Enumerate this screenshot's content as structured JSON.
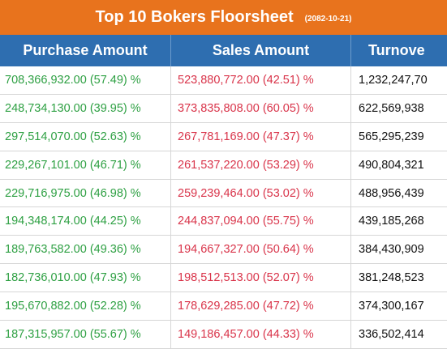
{
  "title": {
    "main": "Top 10 Bokers Floorsheet",
    "date": "(2082-10-21)"
  },
  "columns": {
    "purchase": "Purchase Amount",
    "sales": "Sales Amount",
    "turnover": "Turnove"
  },
  "rows": [
    {
      "purchase": "708,366,932.00 (57.49) %",
      "sales": "523,880,772.00 (42.51) %",
      "turnover": "1,232,247,70"
    },
    {
      "purchase": "248,734,130.00 (39.95) %",
      "sales": "373,835,808.00 (60.05) %",
      "turnover": "622,569,938"
    },
    {
      "purchase": "297,514,070.00 (52.63) %",
      "sales": "267,781,169.00 (47.37) %",
      "turnover": "565,295,239"
    },
    {
      "purchase": "229,267,101.00 (46.71) %",
      "sales": "261,537,220.00 (53.29) %",
      "turnover": "490,804,321"
    },
    {
      "purchase": "229,716,975.00 (46.98) %",
      "sales": "259,239,464.00 (53.02) %",
      "turnover": "488,956,439"
    },
    {
      "purchase": "194,348,174.00 (44.25) %",
      "sales": "244,837,094.00 (55.75) %",
      "turnover": "439,185,268"
    },
    {
      "purchase": "189,763,582.00 (49.36) %",
      "sales": "194,667,327.00 (50.64) %",
      "turnover": "384,430,909"
    },
    {
      "purchase": "182,736,010.00 (47.93) %",
      "sales": "198,512,513.00 (52.07) %",
      "turnover": "381,248,523"
    },
    {
      "purchase": "195,670,882.00 (52.28) %",
      "sales": "178,629,285.00 (47.72) %",
      "turnover": "374,300,167"
    },
    {
      "purchase": "187,315,957.00 (55.67) %",
      "sales": "149,186,457.00 (44.33) %",
      "turnover": "336,502,414"
    }
  ],
  "colors": {
    "title_bg": "#e8731d",
    "header_bg": "#2e6eb0",
    "purchase_text": "#2ea043",
    "sales_text": "#d9344a"
  }
}
